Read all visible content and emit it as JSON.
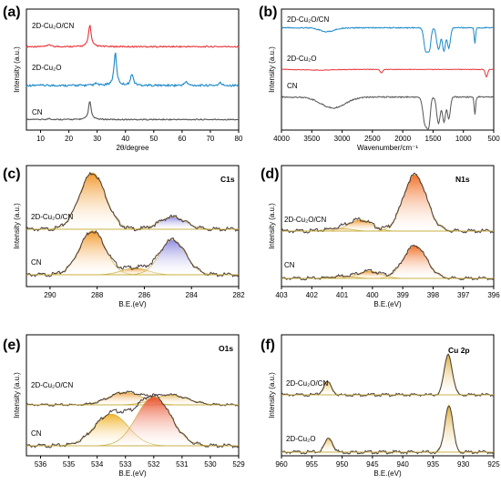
{
  "chart_data": [
    {
      "panel": "(a)",
      "type": "line",
      "xlabel": "2θ/degree",
      "ylabel": "Intensity (a.u.)",
      "xlim": [
        5,
        80
      ],
      "xticks": [
        "10",
        "20",
        "30",
        "40",
        "50",
        "60",
        "70",
        "80"
      ],
      "series": [
        {
          "name": "2D-Cu₂O/CN",
          "color": "#e8343a",
          "peaks": [
            [
              13.1,
              0.1
            ],
            [
              27.4,
              1.0
            ]
          ]
        },
        {
          "name": "2D-Cu₂O",
          "color": "#1a88c8",
          "peaks": [
            [
              29.6,
              0.06
            ],
            [
              36.4,
              1.0
            ],
            [
              42.3,
              0.35
            ],
            [
              61.4,
              0.12
            ],
            [
              73.5,
              0.08
            ]
          ]
        },
        {
          "name": "CN",
          "color": "#555555",
          "peaks": [
            [
              13.1,
              0.06
            ],
            [
              27.4,
              1.0
            ]
          ]
        }
      ]
    },
    {
      "panel": "(b)",
      "type": "line",
      "xlabel": "Wavenumber/cm⁻¹",
      "ylabel": "Intensity (a.u.)",
      "xlim": [
        4000,
        500
      ],
      "xticks": [
        "4000",
        "3500",
        "3000",
        "2500",
        "2000",
        "1500",
        "1000",
        "500"
      ],
      "series": [
        {
          "name": "2D-Cu₂O/CN",
          "color": "#1a88c8"
        },
        {
          "name": "2D-Cu₂O",
          "color": "#e8343a"
        },
        {
          "name": "CN",
          "color": "#555555"
        }
      ]
    },
    {
      "panel": "(c)",
      "type": "line",
      "peak_label": "C1s",
      "xlabel": "B.E.(eV)",
      "ylabel": "Intensity (a.u.)",
      "xlim": [
        291,
        282
      ],
      "xticks": [
        "290",
        "288",
        "286",
        "284",
        "282"
      ],
      "series": [
        {
          "name": "2D-Cu₂O/CN",
          "components": [
            [
              288.2,
              1.0,
              "#f0921e"
            ],
            [
              284.8,
              0.22,
              "#8a86de"
            ]
          ]
        },
        {
          "name": "CN",
          "components": [
            [
              288.2,
              0.78,
              "#f0921e"
            ],
            [
              286.4,
              0.12,
              "#f0921e"
            ],
            [
              284.8,
              0.62,
              "#8a86de"
            ]
          ]
        }
      ]
    },
    {
      "panel": "(d)",
      "type": "line",
      "peak_label": "N1s",
      "xlabel": "B.E.(eV)",
      "ylabel": "Intensity (a.u.)",
      "xlim": [
        403,
        396
      ],
      "xticks": [
        "403",
        "402",
        "401",
        "400",
        "399",
        "398",
        "397",
        "396"
      ],
      "series": [
        {
          "name": "2D-Cu₂O/CN",
          "components": [
            [
              398.6,
              1.0,
              "#f06a1e"
            ],
            [
              400.4,
              0.2,
              "#f0921e"
            ],
            [
              401.1,
              0.05,
              "#f0a040"
            ]
          ]
        },
        {
          "name": "CN",
          "components": [
            [
              398.6,
              0.72,
              "#f06a1e"
            ],
            [
              400.1,
              0.16,
              "#f0921e"
            ],
            [
              401.0,
              0.05,
              "#f0a040"
            ]
          ]
        }
      ]
    },
    {
      "panel": "(e)",
      "type": "line",
      "peak_label": "O1s",
      "xlabel": "B.E.(eV)",
      "ylabel": "Intensity (a.u.)",
      "xlim": [
        536.5,
        529
      ],
      "xticks": [
        "536",
        "535",
        "534",
        "533",
        "532",
        "531",
        "530",
        "529"
      ],
      "series": [
        {
          "name": "2D-Cu₂O/CN",
          "components": [
            [
              533.0,
              0.38,
              "#f0a040"
            ],
            [
              531.4,
              0.3,
              "#e8c070"
            ]
          ]
        },
        {
          "name": "CN",
          "components": [
            [
              533.5,
              0.58,
              "#f0b020"
            ],
            [
              532.0,
              0.9,
              "#e84a24"
            ]
          ]
        }
      ]
    },
    {
      "panel": "(f)",
      "type": "line",
      "peak_label": "Cu 2p",
      "xlabel": "B.E.(eV)",
      "ylabel": "Intensity (a.u.)",
      "xlim": [
        960,
        925
      ],
      "xticks": [
        "960",
        "955",
        "950",
        "945",
        "940",
        "935",
        "930",
        "925"
      ],
      "series": [
        {
          "name": "2D-Cu₂O/CN",
          "components": [
            [
              952.4,
              0.32,
              "#e8c048"
            ],
            [
              932.5,
              1.0,
              "#d8a828"
            ]
          ]
        },
        {
          "name": "2D-Cu₂O",
          "components": [
            [
              952.2,
              0.3,
              "#e8c048"
            ],
            [
              932.4,
              1.0,
              "#d8a828"
            ]
          ]
        }
      ]
    }
  ]
}
